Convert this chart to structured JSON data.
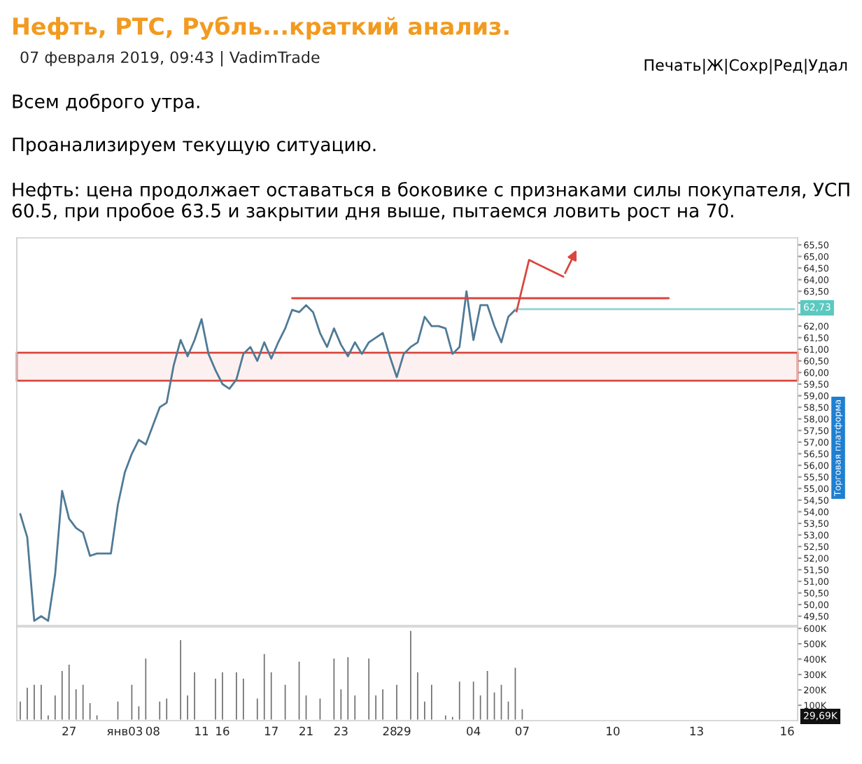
{
  "chart_data": [
    {
      "type": "line",
      "title": "Нефть, РТС, Рубль...краткий анализ.",
      "subtitle": "07 февраля 2019, 09:43 | VadimTrade",
      "annotations": [
        "Печать|Ж|Сохр|Ред|Удал",
        "Всем доброго утра.",
        "Проанализируем текущую ситуацию.",
        "Нефть: цена продолжает оставаться в боковике с признаками силы покупателя, УСП 60.5, при пробое 63.5 и закрытии дня выше, пытаемся ловить рост на 70.",
        "Торговая платформа",
        "62,73"
      ],
      "series": [
        {
          "color": "#4f7a96",
          "values": [
            53.9,
            52.9,
            49.3,
            49.5,
            49.3,
            51.3,
            54.9,
            53.7,
            53.3,
            53.1,
            52.1,
            52.2,
            52.2,
            52.2,
            54.3,
            55.7,
            56.5,
            57.1,
            56.9,
            57.7,
            58.5,
            58.7,
            60.3,
            61.4,
            60.7,
            61.4,
            62.3,
            60.8,
            60.1,
            59.5,
            59.3,
            59.7,
            60.8,
            61.1,
            60.5,
            61.3,
            60.6,
            61.3,
            61.9,
            62.7,
            62.6,
            62.9,
            62.6,
            61.7,
            61.1,
            61.9,
            61.2,
            60.7,
            61.3,
            60.8,
            61.3,
            61.5,
            61.7,
            60.7,
            59.8,
            60.8,
            61.1,
            61.3,
            62.4,
            62.0,
            62.0,
            61.9,
            60.8,
            61.1,
            63.5,
            61.4,
            62.9,
            62.9,
            62.0,
            61.3,
            62.4,
            62.7,
            null,
            null,
            null,
            null,
            null,
            null,
            null,
            null,
            null,
            null,
            null,
            null,
            null,
            null,
            null,
            null,
            null,
            null,
            null,
            null,
            null,
            null,
            null,
            null,
            null,
            null,
            null,
            null,
            null,
            null,
            null,
            null,
            null,
            null,
            null,
            null,
            null,
            null,
            null,
            null
          ]
        },
        {
          "color": "#8fd3d8",
          "values": [
            null,
            null,
            null,
            null,
            null,
            null,
            null,
            null,
            null,
            null,
            null,
            null,
            null,
            null,
            null,
            null,
            null,
            null,
            null,
            null,
            null,
            null,
            null,
            null,
            null,
            null,
            null,
            null,
            null,
            null,
            null,
            null,
            null,
            null,
            null,
            null,
            null,
            null,
            null,
            null,
            null,
            null,
            null,
            null,
            null,
            null,
            null,
            null,
            null,
            null,
            null,
            null,
            null,
            null,
            null,
            null,
            null,
            null,
            null,
            null,
            null,
            null,
            null,
            null,
            null,
            null,
            null,
            null,
            null,
            null,
            null,
            62.73,
            62.73,
            62.73,
            62.73,
            62.73,
            62.73,
            62.73,
            62.73,
            62.73,
            62.73,
            62.73,
            62.73,
            62.73,
            62.73,
            62.73,
            62.73,
            62.73,
            62.73,
            62.73,
            62.73,
            62.73,
            62.73,
            62.73,
            62.73,
            62.73,
            62.73,
            62.73,
            62.73,
            62.73,
            62.73,
            62.73,
            62.73,
            62.73,
            62.73,
            62.73,
            62.73,
            62.73,
            62.73,
            62.73,
            62.73,
            62.73
          ]
        },
        {
          "color": "#d9473f",
          "values": [
            null,
            null,
            null,
            null,
            null,
            null,
            null,
            null,
            null,
            null,
            null,
            null,
            null,
            null,
            null,
            null,
            null,
            null,
            null,
            null,
            null,
            null,
            null,
            null,
            null,
            null,
            null,
            null,
            null,
            null,
            null,
            null,
            null,
            null,
            null,
            null,
            null,
            null,
            null,
            63.2,
            63.2,
            63.2,
            63.2,
            63.2,
            63.2,
            63.2,
            63.2,
            63.2,
            63.2,
            63.2,
            63.2,
            63.2,
            63.2,
            63.2,
            63.2,
            63.2,
            63.2,
            63.2,
            63.2,
            63.2,
            63.2,
            63.2,
            63.2,
            63.2,
            63.2,
            63.2,
            63.2,
            63.2,
            63.2,
            63.2,
            63.2,
            63.2,
            63.2,
            63.2,
            63.2,
            63.2,
            63.2,
            63.2,
            63.2,
            63.2,
            63.2,
            63.2,
            63.2,
            63.2,
            63.2,
            63.2,
            63.2,
            63.2,
            63.2,
            63.2,
            63.2,
            63.2,
            63.2,
            63.2,
            null,
            null,
            null,
            null,
            null,
            null,
            null,
            null,
            null,
            null,
            null,
            null,
            null,
            null,
            null,
            null,
            null,
            null
          ]
        }
      ],
      "bands": [
        {
          "axis": "y",
          "from": 59.65,
          "to": 60.85,
          "color": "#d9473f"
        }
      ],
      "ylim": [
        49.1,
        65.8
      ],
      "tick_labels": "y",
      "yticks": [
        {
          "value": 49.5,
          "label": "49,50"
        },
        {
          "value": 50,
          "label": "50,00"
        },
        {
          "value": 50.5,
          "label": "50,50"
        },
        {
          "value": 51,
          "label": "51,00"
        },
        {
          "value": 51.5,
          "label": "51,50"
        },
        {
          "value": 52,
          "label": "52,00"
        },
        {
          "value": 52.5,
          "label": "52,50"
        },
        {
          "value": 53,
          "label": "53,00"
        },
        {
          "value": 53.5,
          "label": "53,50"
        },
        {
          "value": 54,
          "label": "54,00"
        },
        {
          "value": 54.5,
          "label": "54,50"
        },
        {
          "value": 55,
          "label": "55,00"
        },
        {
          "value": 55.5,
          "label": "55,50"
        },
        {
          "value": 56,
          "label": "56,00"
        },
        {
          "value": 56.5,
          "label": "56,50"
        },
        {
          "value": 57,
          "label": "57,00"
        },
        {
          "value": 57.5,
          "label": "57,50"
        },
        {
          "value": 58,
          "label": "58,00"
        },
        {
          "value": 58.5,
          "label": "58,50"
        },
        {
          "value": 59,
          "label": "59,00"
        },
        {
          "value": 59.5,
          "label": "59,50"
        },
        {
          "value": 60,
          "label": "60,00"
        },
        {
          "value": 60.5,
          "label": "60,50"
        },
        {
          "value": 61,
          "label": "61,00"
        },
        {
          "value": 61.5,
          "label": "61,50"
        },
        {
          "value": 62,
          "label": "62,00"
        },
        {
          "value": 62.5,
          "label": null
        },
        {
          "value": 63,
          "label": null
        },
        {
          "value": 63.5,
          "label": "63,50"
        },
        {
          "value": 64,
          "label": "64,00"
        },
        {
          "value": 64.5,
          "label": "64,50"
        },
        {
          "value": 65,
          "label": "65,00"
        },
        {
          "value": 65.5,
          "label": "65,50"
        }
      ]
    },
    {
      "type": "bar",
      "annotations": [
        "29,69K"
      ],
      "categories": [
        null,
        null,
        null,
        null,
        null,
        null,
        null,
        "27",
        null,
        null,
        null,
        null,
        null,
        null,
        null,
        "янв03",
        null,
        null,
        null,
        "08",
        null,
        null,
        null,
        null,
        null,
        null,
        "11",
        null,
        null,
        "16",
        null,
        null,
        null,
        null,
        null,
        null,
        "17",
        null,
        null,
        null,
        null,
        "21",
        null,
        null,
        null,
        null,
        "23",
        null,
        null,
        null,
        null,
        null,
        null,
        "28",
        null,
        "29",
        null,
        null,
        null,
        null,
        null,
        null,
        null,
        null,
        null,
        "04",
        null,
        null,
        null,
        null,
        null,
        null,
        "07",
        null,
        null,
        null,
        null,
        null,
        null,
        null,
        null,
        null,
        null,
        null,
        null,
        "10",
        null,
        null,
        null,
        null,
        null,
        null,
        null,
        null,
        null,
        null,
        null,
        "13",
        null,
        null,
        null,
        null,
        null,
        null,
        null,
        null,
        null,
        null,
        null,
        null,
        "16",
        null
      ],
      "series": [
        {
          "color": "#6e6e6e",
          "values": [
            130,
            220,
            240,
            240,
            40,
            170,
            330,
            370,
            210,
            240,
            120,
            40,
            null,
            null,
            130,
            null,
            240,
            100,
            410,
            null,
            130,
            150,
            null,
            530,
            170,
            320,
            null,
            null,
            280,
            320,
            null,
            320,
            280,
            null,
            150,
            440,
            320,
            null,
            240,
            null,
            390,
            170,
            null,
            150,
            null,
            410,
            210,
            420,
            170,
            null,
            410,
            170,
            210,
            null,
            240,
            null,
            590,
            320,
            130,
            240,
            null,
            40,
            30,
            260,
            null,
            260,
            170,
            330,
            190,
            240,
            130,
            350,
            80,
            null,
            null,
            null,
            null,
            null,
            null,
            null,
            null,
            null,
            null,
            null,
            null,
            null,
            null,
            null,
            null,
            null,
            null,
            null,
            null,
            null,
            null,
            null,
            null,
            null,
            null,
            null,
            null,
            null,
            null,
            null,
            null,
            null,
            null,
            null,
            null,
            null,
            null,
            null
          ]
        }
      ],
      "ylim": [
        0,
        610
      ],
      "yticks": [
        {
          "value": 100,
          "label": "100K"
        },
        {
          "value": 200,
          "label": "200K"
        },
        {
          "value": 300,
          "label": "300K"
        },
        {
          "value": 400,
          "label": "400K"
        },
        {
          "value": 500,
          "label": "500K"
        },
        {
          "value": 600,
          "label": "600K"
        }
      ]
    }
  ]
}
